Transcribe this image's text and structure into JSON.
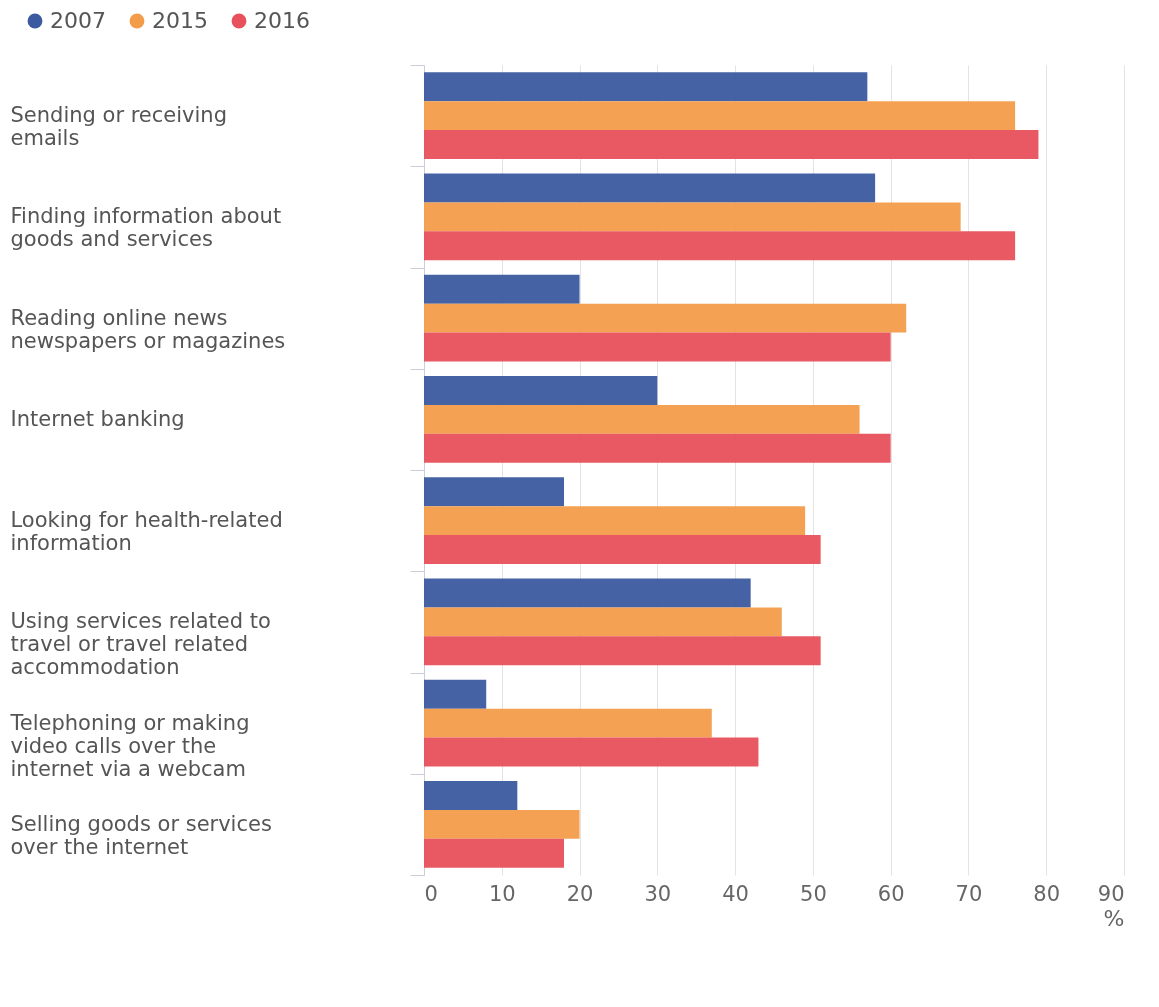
{
  "chart_data": {
    "type": "bar",
    "orientation": "horizontal",
    "xlabel": "%",
    "categories": [
      "Sending or receiving emails",
      "Finding information about goods and services",
      "Reading online news newspapers or magazines",
      "Internet banking",
      "Looking for health-related information",
      "Using services related to travel or travel related accommodation",
      "Telephoning or making video calls over the internet via a webcam",
      "Selling goods or services over the internet"
    ],
    "series": [
      {
        "name": "2007",
        "color": "#3b5aa0",
        "values": [
          57,
          58,
          20,
          30,
          18,
          42,
          8,
          12
        ]
      },
      {
        "name": "2015",
        "color": "#f39c4a",
        "values": [
          76,
          69,
          62,
          56,
          49,
          46,
          37,
          20
        ]
      },
      {
        "name": "2016",
        "color": "#e8505b",
        "values": [
          79,
          76,
          60,
          60,
          51,
          51,
          43,
          18
        ]
      }
    ],
    "xlim": [
      0,
      90
    ],
    "xticks": [
      0,
      10,
      20,
      30,
      40,
      50,
      60,
      70,
      80,
      90
    ],
    "grid": "x",
    "legend": "top left"
  }
}
